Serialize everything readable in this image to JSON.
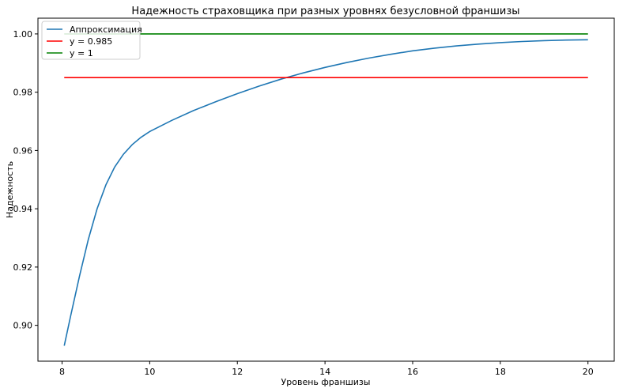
{
  "chart_data": {
    "type": "line",
    "title": "Надежность страховщика при разных уровнях безусловной франшизы",
    "xlabel": "Уровень франшизы",
    "ylabel": "Надежность",
    "xlim": [
      7.45,
      20.6
    ],
    "ylim": [
      0.8877,
      1.0054
    ],
    "xticks": [
      8,
      10,
      12,
      14,
      16,
      18,
      20
    ],
    "yticks": [
      0.9,
      0.92,
      0.94,
      0.96,
      0.98,
      1.0
    ],
    "xtick_labels": [
      "8",
      "10",
      "12",
      "14",
      "16",
      "18",
      "20"
    ],
    "ytick_labels": [
      "0.90",
      "0.92",
      "0.94",
      "0.96",
      "0.98",
      "1.00"
    ],
    "grid": false,
    "legend_position": "upper-left",
    "series": [
      {
        "name": "Аппроксимация",
        "color": "#1f77b4",
        "x": [
          8.05,
          8.2,
          8.4,
          8.6,
          8.8,
          9.0,
          9.2,
          9.4,
          9.6,
          9.8,
          10.0,
          10.5,
          11.0,
          11.5,
          12.0,
          12.5,
          13.0,
          13.5,
          14.0,
          14.5,
          15.0,
          15.5,
          16.0,
          16.5,
          17.0,
          17.5,
          18.0,
          18.5,
          19.0,
          19.5,
          20.0
        ],
        "y": [
          0.893,
          0.9035,
          0.917,
          0.9295,
          0.94,
          0.9482,
          0.9543,
          0.9587,
          0.962,
          0.9645,
          0.9665,
          0.9703,
          0.9737,
          0.9767,
          0.9795,
          0.9821,
          0.9845,
          0.9866,
          0.9885,
          0.9902,
          0.9917,
          0.993,
          0.9942,
          0.9951,
          0.9959,
          0.9965,
          0.997,
          0.9974,
          0.9977,
          0.9979,
          0.998
        ]
      },
      {
        "name": "y = 0.985",
        "color": "#ff0000",
        "x": [
          8.05,
          20.0
        ],
        "y": [
          0.985,
          0.985
        ]
      },
      {
        "name": "y = 1",
        "color": "#008000",
        "x": [
          8.05,
          20.0
        ],
        "y": [
          1.0,
          1.0
        ]
      }
    ]
  }
}
